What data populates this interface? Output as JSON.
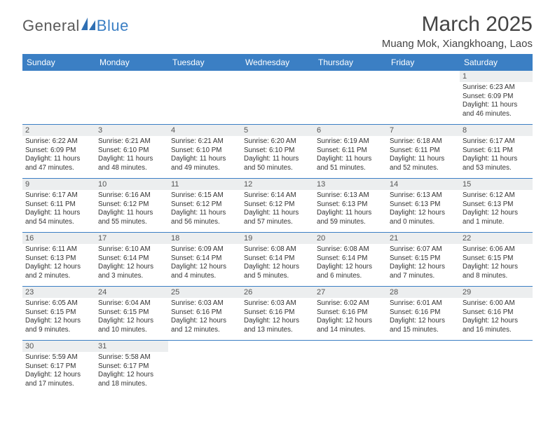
{
  "brand": {
    "general": "General",
    "blue": "Blue"
  },
  "title": "March 2025",
  "location": "Muang Mok, Xiangkhoang, Laos",
  "colors": {
    "header_bg": "#3b7fc4",
    "header_text": "#ffffff",
    "row_separator": "#3b7fc4",
    "daynum_bg": "#eceeef",
    "logo_gray": "#5a5a5a",
    "logo_blue": "#3b7fc4"
  },
  "day_headers": [
    "Sunday",
    "Monday",
    "Tuesday",
    "Wednesday",
    "Thursday",
    "Friday",
    "Saturday"
  ],
  "first_weekday_index": 6,
  "days": [
    {
      "n": 1,
      "sunrise": "6:23 AM",
      "sunset": "6:09 PM",
      "daylight": "11 hours and 46 minutes."
    },
    {
      "n": 2,
      "sunrise": "6:22 AM",
      "sunset": "6:09 PM",
      "daylight": "11 hours and 47 minutes."
    },
    {
      "n": 3,
      "sunrise": "6:21 AM",
      "sunset": "6:10 PM",
      "daylight": "11 hours and 48 minutes."
    },
    {
      "n": 4,
      "sunrise": "6:21 AM",
      "sunset": "6:10 PM",
      "daylight": "11 hours and 49 minutes."
    },
    {
      "n": 5,
      "sunrise": "6:20 AM",
      "sunset": "6:10 PM",
      "daylight": "11 hours and 50 minutes."
    },
    {
      "n": 6,
      "sunrise": "6:19 AM",
      "sunset": "6:11 PM",
      "daylight": "11 hours and 51 minutes."
    },
    {
      "n": 7,
      "sunrise": "6:18 AM",
      "sunset": "6:11 PM",
      "daylight": "11 hours and 52 minutes."
    },
    {
      "n": 8,
      "sunrise": "6:17 AM",
      "sunset": "6:11 PM",
      "daylight": "11 hours and 53 minutes."
    },
    {
      "n": 9,
      "sunrise": "6:17 AM",
      "sunset": "6:11 PM",
      "daylight": "11 hours and 54 minutes."
    },
    {
      "n": 10,
      "sunrise": "6:16 AM",
      "sunset": "6:12 PM",
      "daylight": "11 hours and 55 minutes."
    },
    {
      "n": 11,
      "sunrise": "6:15 AM",
      "sunset": "6:12 PM",
      "daylight": "11 hours and 56 minutes."
    },
    {
      "n": 12,
      "sunrise": "6:14 AM",
      "sunset": "6:12 PM",
      "daylight": "11 hours and 57 minutes."
    },
    {
      "n": 13,
      "sunrise": "6:13 AM",
      "sunset": "6:13 PM",
      "daylight": "11 hours and 59 minutes."
    },
    {
      "n": 14,
      "sunrise": "6:13 AM",
      "sunset": "6:13 PM",
      "daylight": "12 hours and 0 minutes."
    },
    {
      "n": 15,
      "sunrise": "6:12 AM",
      "sunset": "6:13 PM",
      "daylight": "12 hours and 1 minute."
    },
    {
      "n": 16,
      "sunrise": "6:11 AM",
      "sunset": "6:13 PM",
      "daylight": "12 hours and 2 minutes."
    },
    {
      "n": 17,
      "sunrise": "6:10 AM",
      "sunset": "6:14 PM",
      "daylight": "12 hours and 3 minutes."
    },
    {
      "n": 18,
      "sunrise": "6:09 AM",
      "sunset": "6:14 PM",
      "daylight": "12 hours and 4 minutes."
    },
    {
      "n": 19,
      "sunrise": "6:08 AM",
      "sunset": "6:14 PM",
      "daylight": "12 hours and 5 minutes."
    },
    {
      "n": 20,
      "sunrise": "6:08 AM",
      "sunset": "6:14 PM",
      "daylight": "12 hours and 6 minutes."
    },
    {
      "n": 21,
      "sunrise": "6:07 AM",
      "sunset": "6:15 PM",
      "daylight": "12 hours and 7 minutes."
    },
    {
      "n": 22,
      "sunrise": "6:06 AM",
      "sunset": "6:15 PM",
      "daylight": "12 hours and 8 minutes."
    },
    {
      "n": 23,
      "sunrise": "6:05 AM",
      "sunset": "6:15 PM",
      "daylight": "12 hours and 9 minutes."
    },
    {
      "n": 24,
      "sunrise": "6:04 AM",
      "sunset": "6:15 PM",
      "daylight": "12 hours and 10 minutes."
    },
    {
      "n": 25,
      "sunrise": "6:03 AM",
      "sunset": "6:16 PM",
      "daylight": "12 hours and 12 minutes."
    },
    {
      "n": 26,
      "sunrise": "6:03 AM",
      "sunset": "6:16 PM",
      "daylight": "12 hours and 13 minutes."
    },
    {
      "n": 27,
      "sunrise": "6:02 AM",
      "sunset": "6:16 PM",
      "daylight": "12 hours and 14 minutes."
    },
    {
      "n": 28,
      "sunrise": "6:01 AM",
      "sunset": "6:16 PM",
      "daylight": "12 hours and 15 minutes."
    },
    {
      "n": 29,
      "sunrise": "6:00 AM",
      "sunset": "6:16 PM",
      "daylight": "12 hours and 16 minutes."
    },
    {
      "n": 30,
      "sunrise": "5:59 AM",
      "sunset": "6:17 PM",
      "daylight": "12 hours and 17 minutes."
    },
    {
      "n": 31,
      "sunrise": "5:58 AM",
      "sunset": "6:17 PM",
      "daylight": "12 hours and 18 minutes."
    }
  ],
  "labels": {
    "sunrise_prefix": "Sunrise: ",
    "sunset_prefix": "Sunset: ",
    "daylight_prefix": "Daylight: "
  }
}
